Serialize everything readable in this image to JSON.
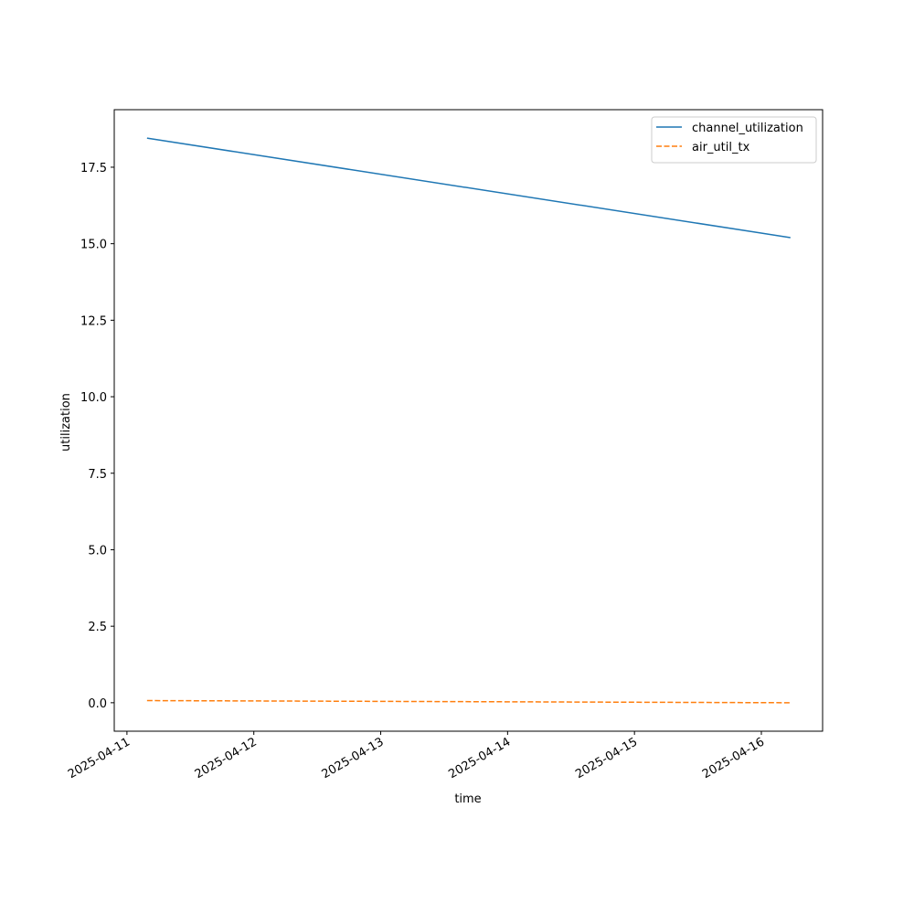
{
  "chart_data": {
    "type": "line",
    "xlabel": "time",
    "ylabel": "utilization",
    "x": [
      "2025-04-11T03:48",
      "2025-04-16T05:30"
    ],
    "series": [
      {
        "name": "channel_utilization",
        "color": "#1f77b4",
        "linestyle": "solid",
        "values": [
          18.45,
          15.2
        ]
      },
      {
        "name": "air_util_tx",
        "color": "#ff7f0e",
        "linestyle": "dashed",
        "values": [
          0.07,
          0.0
        ]
      }
    ],
    "xlim": [
      "2025-04-10T21:36",
      "2025-04-16T11:35"
    ],
    "xticks": [
      "2025-04-11",
      "2025-04-12",
      "2025-04-13",
      "2025-04-14",
      "2025-04-15",
      "2025-04-16"
    ],
    "ylim": [
      -0.93,
      19.38
    ],
    "yticks": [
      {
        "value": 0,
        "label": "0.0"
      },
      2.5,
      {
        "value": 5,
        "label": "5.0"
      },
      7.5,
      {
        "value": 10,
        "label": "10.0"
      },
      12.5,
      {
        "value": 15,
        "label": "15.0"
      },
      17.5
    ],
    "grid": false,
    "legend": "upper right"
  }
}
